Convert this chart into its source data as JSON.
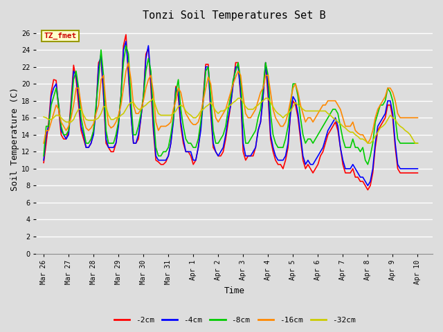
{
  "title": "Tonzi Soil Temperatures Set B",
  "xlabel": "Time",
  "ylabel": "Soil Temperature (C)",
  "ylim": [
    0,
    27
  ],
  "yticks": [
    0,
    2,
    4,
    6,
    8,
    10,
    12,
    14,
    16,
    18,
    20,
    22,
    24,
    26
  ],
  "xtick_labels": [
    "Mar 26",
    "Mar 27",
    "Mar 28",
    "Mar 29",
    "Mar 30",
    "Mar 31",
    "Apr 1",
    "Apr 2",
    "Apr 3",
    "Apr 4",
    "Apr 5",
    "Apr 6",
    "Apr 7",
    "Apr 8",
    "Apr 9",
    "Apr 10"
  ],
  "xtick_positions": [
    0,
    1,
    2,
    3,
    4,
    5,
    6,
    7,
    8,
    9,
    10,
    11,
    12,
    13,
    14,
    15
  ],
  "legend_label": "TZ_fmet",
  "series_labels": [
    "-2cm",
    "-4cm",
    "-8cm",
    "-16cm",
    "-32cm"
  ],
  "series_colors": [
    "#ff0000",
    "#0000ff",
    "#00cc00",
    "#ff8800",
    "#cccc00"
  ],
  "background_color": "#dddddd",
  "plot_bg_color": "#dddddd",
  "grid_color": "#ffffff",
  "title_fontsize": 11,
  "axis_fontsize": 9,
  "tick_fontsize": 7,
  "series": {
    "d2cm": [
      10.7,
      13.0,
      15.5,
      19.0,
      20.5,
      20.4,
      17.0,
      14.0,
      13.5,
      13.5,
      14.5,
      18.0,
      22.2,
      20.5,
      17.5,
      14.5,
      13.5,
      12.5,
      12.5,
      13.0,
      14.5,
      17.0,
      22.5,
      23.0,
      18.5,
      13.0,
      12.5,
      12.0,
      12.0,
      13.0,
      15.5,
      18.5,
      24.5,
      25.8,
      21.0,
      16.5,
      13.0,
      13.0,
      13.5,
      16.0,
      18.5,
      23.5,
      24.2,
      19.5,
      14.5,
      11.0,
      10.8,
      10.5,
      10.5,
      10.8,
      11.5,
      13.0,
      15.8,
      19.7,
      18.5,
      15.0,
      13.0,
      12.0,
      12.0,
      11.5,
      10.5,
      11.0,
      12.5,
      15.0,
      18.5,
      22.3,
      22.3,
      16.5,
      12.5,
      12.0,
      11.5,
      11.5,
      12.0,
      13.5,
      15.5,
      17.5,
      20.0,
      22.5,
      22.5,
      18.5,
      12.0,
      11.0,
      11.5,
      11.5,
      11.5,
      12.5,
      14.5,
      15.5,
      18.5,
      22.5,
      18.5,
      13.5,
      12.0,
      11.0,
      10.5,
      10.5,
      10.0,
      11.0,
      12.5,
      16.5,
      18.0,
      17.5,
      16.0,
      13.5,
      11.0,
      10.0,
      10.5,
      10.0,
      9.5,
      10.0,
      10.5,
      11.5,
      12.0,
      13.0,
      14.0,
      14.5,
      15.0,
      15.5,
      14.5,
      12.5,
      10.5,
      9.5,
      9.5,
      9.5,
      10.0,
      9.0,
      9.0,
      8.5,
      8.5,
      8.0,
      7.5,
      8.0,
      9.5,
      12.5,
      14.5,
      15.0,
      15.5,
      16.0,
      17.5,
      17.5,
      16.0,
      12.5,
      10.0,
      9.5,
      9.5,
      9.5,
      9.5,
      9.5,
      9.5,
      9.5,
      9.5
    ],
    "d4cm": [
      11.0,
      14.0,
      15.0,
      18.5,
      19.5,
      20.0,
      17.5,
      14.5,
      14.0,
      13.5,
      14.0,
      17.5,
      21.5,
      21.0,
      18.5,
      15.0,
      14.0,
      12.5,
      12.5,
      13.0,
      14.0,
      17.0,
      22.0,
      23.5,
      19.0,
      13.5,
      12.5,
      12.5,
      12.5,
      13.0,
      15.0,
      18.5,
      24.0,
      25.0,
      21.5,
      16.5,
      13.0,
      13.0,
      14.0,
      16.0,
      18.5,
      23.0,
      24.5,
      20.5,
      15.0,
      11.5,
      11.0,
      11.0,
      11.0,
      11.0,
      11.5,
      13.0,
      15.5,
      19.5,
      19.0,
      15.5,
      13.5,
      12.0,
      12.0,
      12.0,
      11.0,
      11.0,
      12.5,
      14.5,
      18.0,
      22.0,
      22.0,
      17.0,
      13.0,
      12.0,
      11.5,
      12.0,
      12.5,
      14.0,
      16.0,
      17.5,
      20.0,
      22.0,
      22.0,
      19.0,
      13.0,
      11.5,
      11.5,
      11.5,
      12.0,
      12.5,
      14.5,
      15.5,
      18.5,
      22.5,
      19.5,
      14.0,
      12.5,
      11.5,
      11.0,
      11.0,
      11.0,
      11.5,
      13.0,
      16.5,
      18.5,
      18.0,
      16.5,
      14.0,
      11.5,
      10.5,
      11.0,
      10.5,
      10.5,
      11.0,
      11.5,
      12.0,
      12.5,
      13.5,
      14.5,
      15.0,
      15.5,
      16.0,
      15.0,
      12.5,
      11.0,
      10.0,
      10.0,
      10.0,
      10.5,
      10.0,
      9.5,
      9.0,
      9.0,
      8.5,
      8.0,
      8.5,
      10.0,
      13.0,
      15.0,
      15.5,
      16.0,
      16.5,
      18.0,
      18.0,
      16.5,
      13.0,
      10.5,
      10.0,
      10.0,
      10.0,
      10.0,
      10.0,
      10.0,
      10.0,
      10.0
    ],
    "d8cm": [
      11.5,
      15.0,
      15.0,
      17.5,
      18.5,
      19.5,
      17.5,
      15.0,
      14.0,
      14.0,
      14.5,
      17.0,
      20.5,
      21.5,
      19.5,
      16.0,
      14.5,
      13.0,
      13.0,
      13.5,
      14.5,
      17.5,
      20.5,
      24.0,
      21.0,
      14.5,
      13.0,
      13.0,
      13.0,
      14.0,
      15.5,
      18.5,
      22.5,
      24.5,
      23.5,
      18.0,
      14.0,
      14.0,
      15.0,
      16.5,
      18.5,
      21.5,
      23.0,
      21.5,
      16.5,
      12.5,
      11.5,
      11.5,
      12.0,
      12.0,
      12.5,
      14.0,
      16.0,
      19.0,
      20.5,
      17.0,
      15.0,
      13.5,
      13.0,
      13.0,
      12.5,
      12.5,
      13.5,
      15.5,
      18.0,
      21.5,
      22.0,
      18.5,
      14.5,
      13.0,
      13.0,
      13.5,
      14.0,
      15.0,
      17.0,
      18.5,
      20.5,
      21.5,
      22.5,
      20.5,
      15.5,
      13.0,
      13.0,
      13.5,
      14.0,
      14.5,
      16.0,
      17.0,
      19.5,
      22.5,
      21.0,
      16.5,
      14.0,
      13.0,
      12.5,
      12.5,
      12.5,
      13.5,
      15.0,
      17.5,
      20.0,
      20.0,
      18.5,
      16.0,
      14.0,
      13.0,
      13.5,
      13.5,
      13.0,
      13.5,
      14.0,
      14.5,
      15.0,
      15.5,
      16.0,
      16.5,
      17.0,
      17.0,
      16.5,
      15.0,
      13.5,
      12.5,
      12.5,
      12.5,
      13.5,
      12.5,
      12.5,
      12.0,
      12.5,
      11.0,
      10.5,
      11.5,
      13.0,
      15.5,
      16.5,
      17.5,
      17.5,
      18.0,
      19.5,
      19.0,
      18.0,
      16.0,
      13.5,
      13.0,
      13.0,
      13.0,
      13.0,
      13.0,
      13.0,
      13.0,
      13.0
    ],
    "d16cm": [
      13.0,
      14.5,
      14.5,
      15.5,
      16.5,
      17.5,
      17.0,
      15.5,
      15.0,
      14.5,
      15.0,
      16.0,
      17.5,
      19.5,
      19.5,
      17.5,
      15.8,
      14.8,
      14.5,
      14.8,
      15.3,
      16.5,
      17.5,
      20.5,
      21.0,
      17.5,
      15.2,
      14.8,
      15.0,
      15.5,
      16.3,
      17.5,
      19.5,
      21.5,
      22.5,
      20.5,
      17.5,
      16.5,
      16.5,
      17.0,
      18.0,
      19.5,
      20.5,
      21.0,
      19.0,
      15.5,
      14.5,
      15.0,
      15.0,
      15.0,
      15.2,
      15.5,
      17.0,
      18.0,
      19.5,
      19.0,
      17.5,
      16.5,
      16.0,
      15.5,
      15.2,
      15.2,
      15.5,
      16.5,
      18.0,
      19.5,
      20.8,
      20.0,
      17.5,
      16.0,
      15.5,
      16.0,
      16.5,
      17.0,
      18.0,
      19.0,
      20.0,
      20.8,
      21.5,
      21.0,
      18.5,
      16.5,
      16.0,
      16.0,
      16.5,
      17.0,
      18.0,
      19.0,
      19.5,
      21.0,
      21.0,
      19.0,
      17.0,
      16.0,
      15.5,
      15.0,
      15.0,
      15.5,
      16.5,
      18.0,
      19.5,
      20.0,
      19.0,
      17.5,
      16.5,
      15.5,
      16.0,
      16.0,
      15.5,
      16.0,
      16.5,
      17.0,
      17.5,
      17.5,
      18.0,
      18.0,
      18.0,
      18.0,
      17.5,
      17.0,
      16.0,
      15.0,
      15.0,
      15.0,
      15.5,
      14.5,
      14.2,
      14.0,
      14.0,
      13.5,
      13.0,
      13.5,
      14.5,
      16.0,
      17.0,
      17.5,
      18.0,
      18.5,
      19.5,
      19.5,
      19.0,
      18.0,
      16.5,
      16.0,
      16.0,
      16.0,
      16.0,
      16.0,
      16.0,
      16.0,
      16.0
    ],
    "d32cm": [
      16.1,
      16.0,
      15.8,
      15.8,
      16.0,
      16.3,
      16.3,
      16.0,
      15.7,
      15.5,
      15.5,
      15.5,
      15.8,
      16.5,
      17.0,
      17.0,
      16.3,
      15.8,
      15.7,
      15.7,
      15.7,
      15.8,
      16.0,
      16.5,
      17.3,
      17.3,
      16.3,
      15.8,
      15.8,
      16.0,
      16.0,
      16.3,
      16.5,
      17.0,
      17.5,
      17.8,
      17.8,
      17.3,
      17.0,
      17.0,
      17.3,
      17.5,
      17.8,
      18.0,
      18.3,
      17.3,
      16.5,
      16.3,
      16.3,
      16.3,
      16.3,
      16.3,
      16.5,
      16.8,
      17.3,
      17.5,
      17.3,
      16.8,
      16.5,
      16.3,
      16.0,
      16.0,
      16.3,
      16.8,
      17.0,
      17.3,
      17.5,
      17.8,
      17.3,
      16.8,
      16.5,
      16.8,
      16.8,
      17.0,
      17.3,
      17.5,
      17.8,
      18.0,
      18.3,
      18.3,
      17.8,
      17.3,
      17.0,
      17.0,
      17.0,
      17.3,
      17.5,
      17.8,
      18.0,
      18.3,
      18.3,
      17.8,
      17.3,
      16.8,
      16.5,
      16.3,
      16.0,
      16.3,
      16.5,
      16.8,
      17.3,
      17.8,
      17.5,
      17.3,
      17.0,
      16.8,
      16.8,
      16.8,
      16.8,
      16.8,
      16.8,
      16.8,
      16.8,
      16.8,
      16.5,
      16.3,
      16.0,
      15.8,
      15.5,
      15.3,
      15.0,
      14.8,
      14.5,
      14.3,
      14.3,
      14.0,
      13.8,
      13.5,
      13.5,
      13.3,
      13.0,
      13.0,
      13.3,
      13.8,
      14.3,
      14.8,
      15.0,
      15.3,
      15.8,
      16.3,
      16.0,
      15.8,
      15.3,
      15.0,
      14.8,
      14.5,
      14.3,
      14.0,
      13.5,
      13.0,
      13.0
    ]
  }
}
